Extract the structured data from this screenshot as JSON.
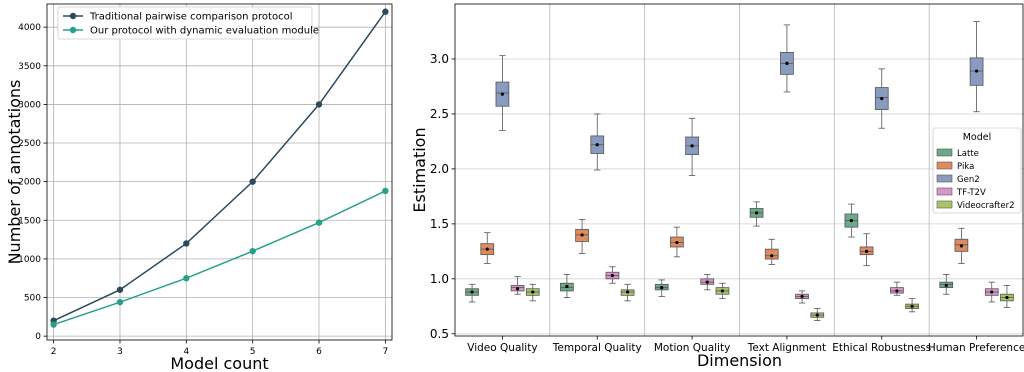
{
  "chart_data": [
    {
      "type": "line",
      "xlabel": "Model count",
      "ylabel": "Number of annotations",
      "x": [
        2,
        3,
        4,
        5,
        6,
        7
      ],
      "xlim": [
        1.9,
        7.1
      ],
      "ylim": [
        -50,
        4300
      ],
      "yticks": [
        0,
        500,
        1000,
        1500,
        2000,
        2500,
        3000,
        3500,
        4000
      ],
      "grid": true,
      "legend_position": "top-left",
      "series": [
        {
          "name": "Traditional pairwise comparison protocol",
          "color": "#2b4a5e",
          "values": [
            200,
            600,
            1200,
            2000,
            3000,
            4200
          ]
        },
        {
          "name": "Our protocol with dynamic evaluation module",
          "color": "#27a08a",
          "values": [
            150,
            440,
            750,
            1100,
            1470,
            1880
          ]
        }
      ]
    },
    {
      "type": "box",
      "xlabel": "Dimension",
      "ylabel": "Estimation",
      "ylim": [
        0.48,
        3.5
      ],
      "yticks": [
        "0.5",
        "1.0",
        "1.5",
        "2.0",
        "2.5",
        "3.0"
      ],
      "grid": true,
      "legend_title": "Model",
      "legend_position": "right",
      "categories": [
        "Video Quality",
        "Temporal Quality",
        "Motion Quality",
        "Text Alignment",
        "Ethical Robustness",
        "Human Preference"
      ],
      "series": [
        {
          "name": "Latte",
          "color": "#6aaa8a",
          "boxes": [
            {
              "min": 0.79,
              "q1": 0.85,
              "median": 0.88,
              "q3": 0.91,
              "max": 0.95,
              "mean": 0.88
            },
            {
              "min": 0.83,
              "q1": 0.89,
              "median": 0.92,
              "q3": 0.96,
              "max": 1.04,
              "mean": 0.93
            },
            {
              "min": 0.84,
              "q1": 0.9,
              "median": 0.92,
              "q3": 0.95,
              "max": 0.99,
              "mean": 0.92
            },
            {
              "min": 1.48,
              "q1": 1.56,
              "median": 1.6,
              "q3": 1.64,
              "max": 1.7,
              "mean": 1.6
            },
            {
              "min": 1.38,
              "q1": 1.47,
              "median": 1.53,
              "q3": 1.59,
              "max": 1.68,
              "mean": 1.53
            },
            {
              "min": 0.86,
              "q1": 0.92,
              "median": 0.95,
              "q3": 0.97,
              "max": 1.04,
              "mean": 0.94
            }
          ]
        },
        {
          "name": "Pika",
          "color": "#e08a60",
          "boxes": [
            {
              "min": 1.14,
              "q1": 1.22,
              "median": 1.27,
              "q3": 1.32,
              "max": 1.42,
              "mean": 1.27
            },
            {
              "min": 1.23,
              "q1": 1.34,
              "median": 1.4,
              "q3": 1.45,
              "max": 1.54,
              "mean": 1.4
            },
            {
              "min": 1.2,
              "q1": 1.29,
              "median": 1.33,
              "q3": 1.38,
              "max": 1.47,
              "mean": 1.33
            },
            {
              "min": 1.13,
              "q1": 1.18,
              "median": 1.21,
              "q3": 1.27,
              "max": 1.36,
              "mean": 1.21
            },
            {
              "min": 1.12,
              "q1": 1.22,
              "median": 1.25,
              "q3": 1.29,
              "max": 1.41,
              "mean": 1.25
            },
            {
              "min": 1.14,
              "q1": 1.25,
              "median": 1.31,
              "q3": 1.36,
              "max": 1.46,
              "mean": 1.3
            }
          ]
        },
        {
          "name": "Gen2",
          "color": "#8a9bc0",
          "boxes": [
            {
              "min": 2.35,
              "q1": 2.57,
              "median": 2.69,
              "q3": 2.79,
              "max": 3.03,
              "mean": 2.68
            },
            {
              "min": 1.99,
              "q1": 2.14,
              "median": 2.22,
              "q3": 2.3,
              "max": 2.5,
              "mean": 2.22
            },
            {
              "min": 1.94,
              "q1": 2.13,
              "median": 2.21,
              "q3": 2.29,
              "max": 2.46,
              "mean": 2.21
            },
            {
              "min": 2.7,
              "q1": 2.86,
              "median": 2.96,
              "q3": 3.06,
              "max": 3.31,
              "mean": 2.96
            },
            {
              "min": 2.37,
              "q1": 2.54,
              "median": 2.65,
              "q3": 2.74,
              "max": 2.91,
              "mean": 2.64
            },
            {
              "min": 2.52,
              "q1": 2.76,
              "median": 2.89,
              "q3": 3.01,
              "max": 3.34,
              "mean": 2.89
            }
          ]
        },
        {
          "name": "TF-T2V",
          "color": "#d896c8",
          "boxes": [
            {
              "min": 0.86,
              "q1": 0.89,
              "median": 0.92,
              "q3": 0.94,
              "max": 1.02,
              "mean": 0.91
            },
            {
              "min": 0.96,
              "q1": 1.0,
              "median": 1.03,
              "q3": 1.06,
              "max": 1.11,
              "mean": 1.03
            },
            {
              "min": 0.9,
              "q1": 0.95,
              "median": 0.97,
              "q3": 1.0,
              "max": 1.04,
              "mean": 0.97
            },
            {
              "min": 0.78,
              "q1": 0.82,
              "median": 0.84,
              "q3": 0.86,
              "max": 0.89,
              "mean": 0.84
            },
            {
              "min": 0.85,
              "q1": 0.87,
              "median": 0.89,
              "q3": 0.92,
              "max": 0.97,
              "mean": 0.89
            },
            {
              "min": 0.79,
              "q1": 0.85,
              "median": 0.88,
              "q3": 0.91,
              "max": 0.97,
              "mean": 0.88
            }
          ]
        },
        {
          "name": "Videocrafter2",
          "color": "#a8c668",
          "boxes": [
            {
              "min": 0.8,
              "q1": 0.85,
              "median": 0.88,
              "q3": 0.91,
              "max": 0.95,
              "mean": 0.88
            },
            {
              "min": 0.8,
              "q1": 0.85,
              "median": 0.88,
              "q3": 0.9,
              "max": 0.95,
              "mean": 0.88
            },
            {
              "min": 0.82,
              "q1": 0.86,
              "median": 0.89,
              "q3": 0.92,
              "max": 0.96,
              "mean": 0.89
            },
            {
              "min": 0.62,
              "q1": 0.65,
              "median": 0.67,
              "q3": 0.69,
              "max": 0.73,
              "mean": 0.67
            },
            {
              "min": 0.7,
              "q1": 0.73,
              "median": 0.75,
              "q3": 0.77,
              "max": 0.82,
              "mean": 0.75
            },
            {
              "min": 0.74,
              "q1": 0.8,
              "median": 0.83,
              "q3": 0.86,
              "max": 0.94,
              "mean": 0.83
            }
          ]
        }
      ]
    }
  ]
}
